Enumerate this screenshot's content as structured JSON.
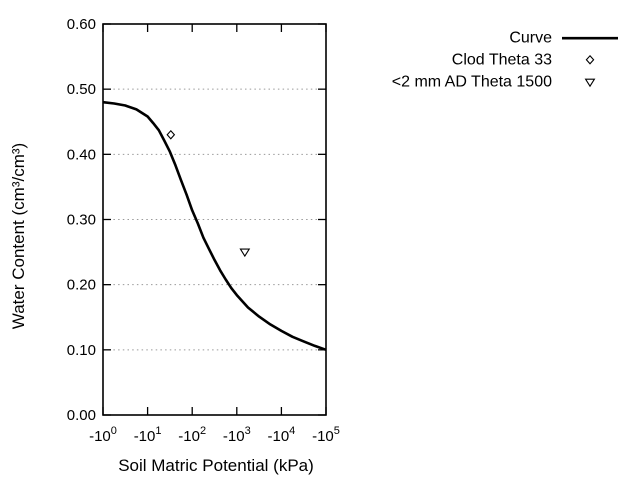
{
  "colors": {
    "foreground": "#000000",
    "background": "#ffffff",
    "gridline": "#9a9a9a"
  },
  "chart_data": {
    "type": "line",
    "title": "",
    "xlabel": "Soil Matric Potential (kPa)",
    "ylabel": "Water Content (cm³/cm³)",
    "x_axis": {
      "scale": "log10 of negative matric potential",
      "decade_range": [
        0,
        5
      ],
      "ticks": [
        {
          "base": "-10",
          "exp": "0",
          "decade": 0,
          "kpa": -1
        },
        {
          "base": "-10",
          "exp": "1",
          "decade": 1,
          "kpa": -10
        },
        {
          "base": "-10",
          "exp": "2",
          "decade": 2,
          "kpa": -100
        },
        {
          "base": "-10",
          "exp": "3",
          "decade": 3,
          "kpa": -1000
        },
        {
          "base": "-10",
          "exp": "4",
          "decade": 4,
          "kpa": -10000
        },
        {
          "base": "-10",
          "exp": "5",
          "decade": 5,
          "kpa": -100000
        }
      ]
    },
    "y_axis": {
      "range": [
        0,
        0.6
      ],
      "ticks": [
        {
          "label": "0.00",
          "value": 0.0
        },
        {
          "label": "0.10",
          "value": 0.1
        },
        {
          "label": "0.20",
          "value": 0.2
        },
        {
          "label": "0.30",
          "value": 0.3
        },
        {
          "label": "0.40",
          "value": 0.4
        },
        {
          "label": "0.50",
          "value": 0.5
        },
        {
          "label": "0.60",
          "value": 0.6
        }
      ]
    },
    "grid": {
      "horizontal_dotted": true,
      "vertical": false
    },
    "series": [
      {
        "name": "Curve",
        "type": "line",
        "points_decade_value": [
          [
            0.0,
            0.48
          ],
          [
            0.25,
            0.478
          ],
          [
            0.5,
            0.475
          ],
          [
            0.75,
            0.469
          ],
          [
            1.0,
            0.458
          ],
          [
            1.125,
            0.448
          ],
          [
            1.25,
            0.437
          ],
          [
            1.375,
            0.421
          ],
          [
            1.5,
            0.404
          ],
          [
            1.625,
            0.383
          ],
          [
            1.75,
            0.36
          ],
          [
            1.875,
            0.338
          ],
          [
            2.0,
            0.314
          ],
          [
            2.125,
            0.294
          ],
          [
            2.25,
            0.272
          ],
          [
            2.375,
            0.255
          ],
          [
            2.5,
            0.238
          ],
          [
            2.625,
            0.222
          ],
          [
            2.75,
            0.208
          ],
          [
            2.875,
            0.195
          ],
          [
            3.0,
            0.184
          ],
          [
            3.25,
            0.165
          ],
          [
            3.5,
            0.151
          ],
          [
            3.75,
            0.139
          ],
          [
            4.0,
            0.129
          ],
          [
            4.25,
            0.12
          ],
          [
            4.5,
            0.113
          ],
          [
            4.75,
            0.106
          ],
          [
            5.0,
            0.1
          ]
        ]
      },
      {
        "name": "Clod Theta 33",
        "type": "scatter",
        "marker": "open-diamond",
        "points": [
          {
            "kpa": -33,
            "decade": 1.52,
            "value": 0.43
          }
        ]
      },
      {
        "name": "<2 mm AD Theta 1500",
        "type": "scatter",
        "marker": "open-triangle-down",
        "points": [
          {
            "kpa": -1500,
            "decade": 3.18,
            "value": 0.25
          }
        ]
      }
    ],
    "legend": {
      "position": "top-right-outside",
      "items": [
        {
          "label": "Curve",
          "sample": "line"
        },
        {
          "label": "Clod Theta 33",
          "sample": "open-diamond"
        },
        {
          "label": "<2 mm AD Theta 1500",
          "sample": "open-triangle-down"
        }
      ]
    }
  }
}
